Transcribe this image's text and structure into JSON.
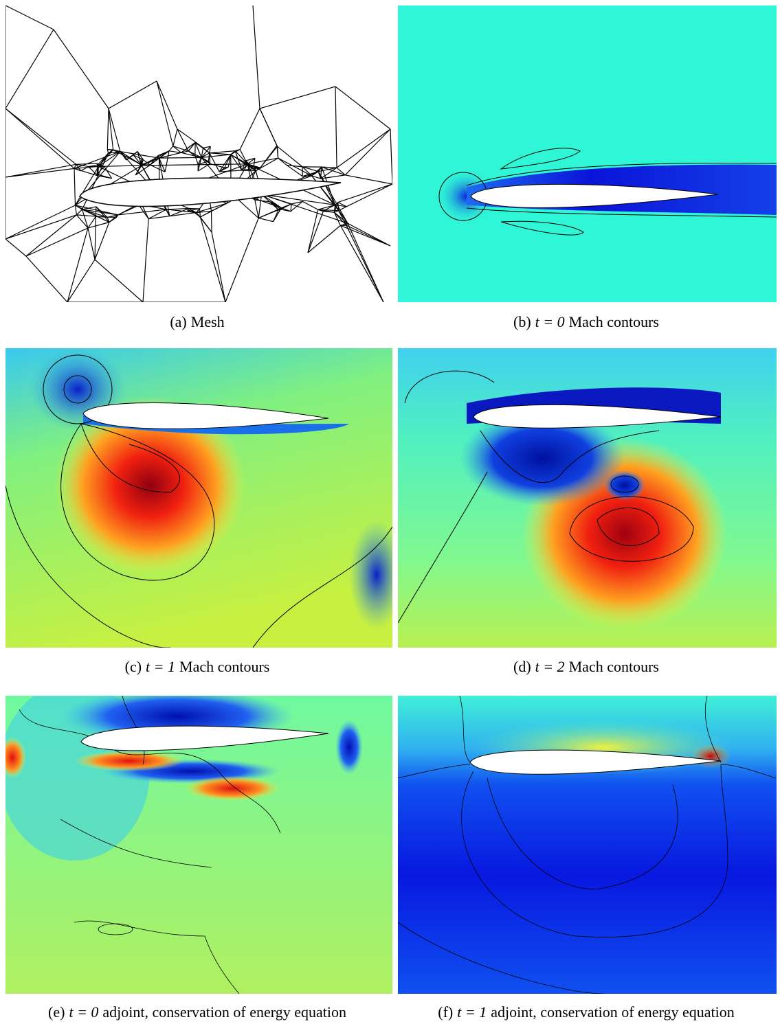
{
  "panels": [
    {
      "label": "(a)",
      "text": "Mesh"
    },
    {
      "label": "(b)",
      "math": "t = 0",
      "text": "Mach contours"
    },
    {
      "label": "(c)",
      "math": "t = 1",
      "text": "Mach contours"
    },
    {
      "label": "(d)",
      "math": "t = 2",
      "text": "Mach contours"
    },
    {
      "label": "(e)",
      "math": "t = 0",
      "text": "adjoint, conservation of energy equation"
    },
    {
      "label": "(f)",
      "math": "t = 1",
      "text": "adjoint, conservation of energy equation"
    }
  ]
}
